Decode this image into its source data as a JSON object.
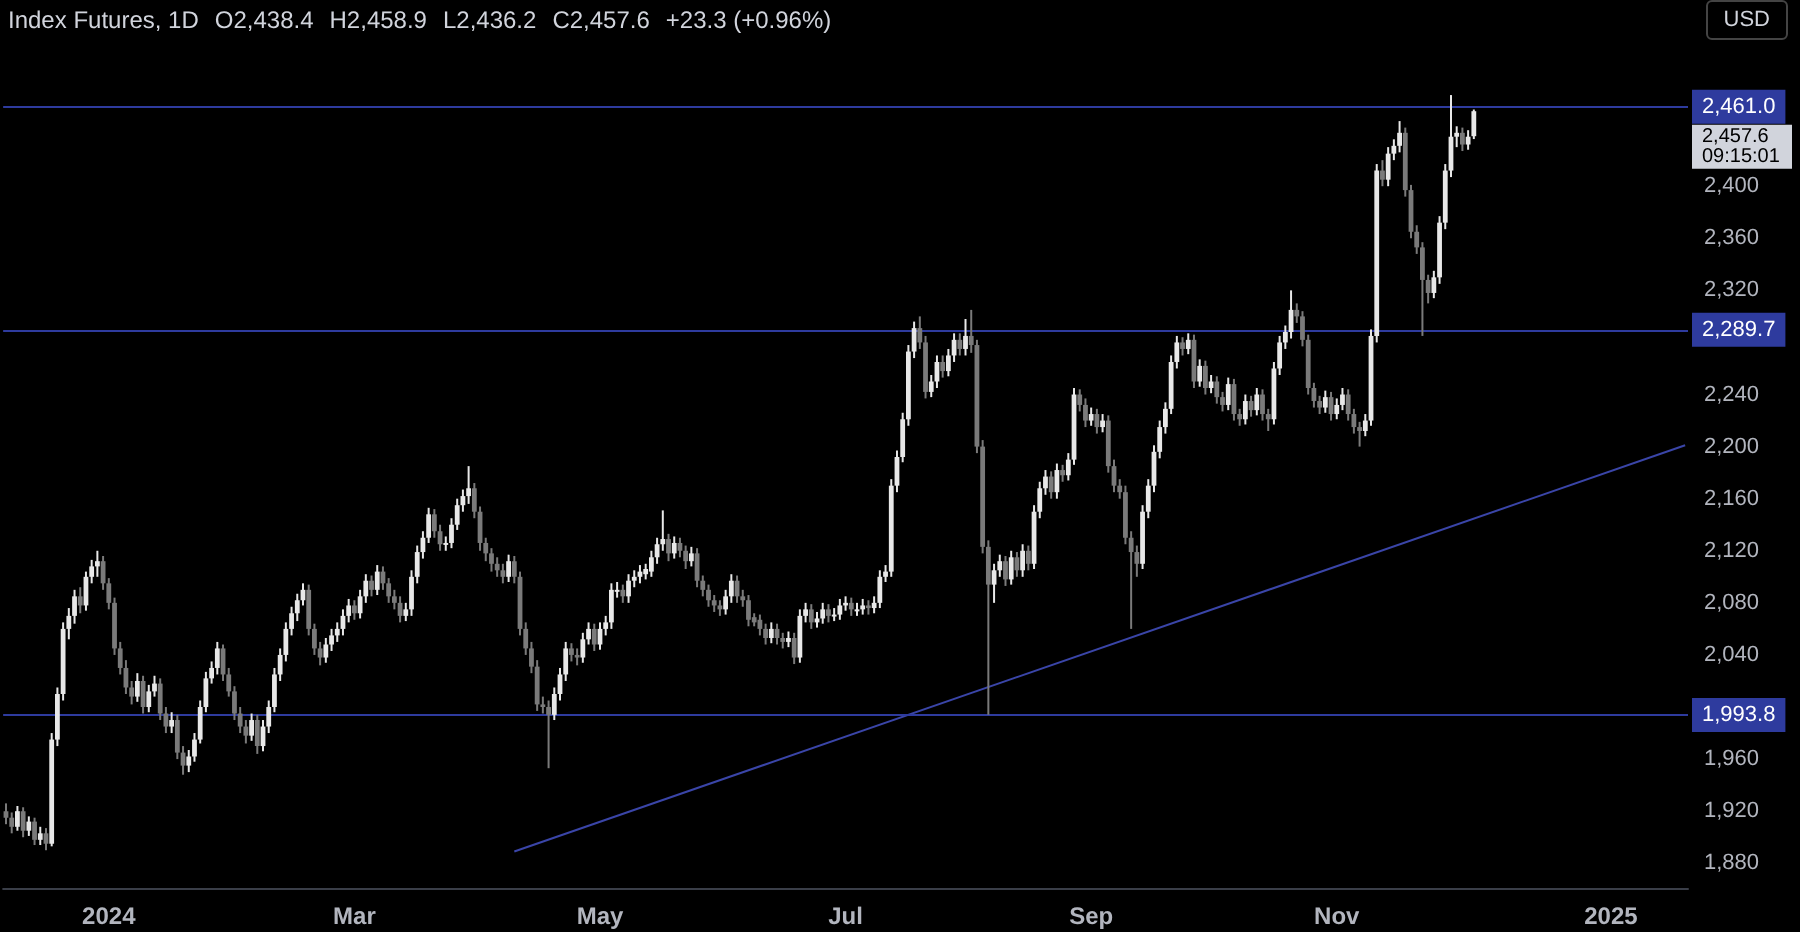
{
  "chart_data": {
    "type": "candlestick",
    "title": "Index Futures, 1D",
    "annotations": [
      "O2,438.4",
      "H2,458.9",
      "L2,436.2",
      "C2,457.6",
      "+23.3 (+0.96%)",
      "USD",
      "2,457.6",
      "09:15:01"
    ],
    "categories": [
      null,
      null,
      null,
      null,
      null,
      null,
      null,
      null,
      null,
      null,
      null,
      null,
      null,
      null,
      null,
      null,
      null,
      null,
      "2024",
      null,
      null,
      null,
      null,
      null,
      null,
      null,
      null,
      null,
      null,
      null,
      null,
      null,
      null,
      null,
      null,
      null,
      null,
      null,
      null,
      null,
      null,
      null,
      null,
      null,
      null,
      null,
      null,
      null,
      null,
      null,
      null,
      null,
      null,
      null,
      null,
      null,
      null,
      null,
      null,
      null,
      null,
      "Mar",
      null,
      null,
      null,
      null,
      null,
      null,
      null,
      null,
      null,
      null,
      null,
      null,
      null,
      null,
      null,
      null,
      null,
      null,
      null,
      null,
      null,
      null,
      null,
      null,
      null,
      null,
      null,
      null,
      null,
      null,
      null,
      null,
      null,
      null,
      null,
      null,
      null,
      null,
      null,
      null,
      null,
      null,
      "May",
      null,
      null,
      null,
      null,
      null,
      null,
      null,
      null,
      null,
      null,
      null,
      null,
      null,
      null,
      null,
      null,
      null,
      null,
      null,
      null,
      null,
      null,
      null,
      null,
      null,
      null,
      null,
      null,
      null,
      null,
      null,
      null,
      null,
      null,
      null,
      null,
      null,
      null,
      null,
      null,
      null,
      null,
      "Jul",
      null,
      null,
      null,
      null,
      null,
      null,
      null,
      null,
      null,
      null,
      null,
      null,
      null,
      null,
      null,
      null,
      null,
      null,
      null,
      null,
      null,
      null,
      null,
      null,
      null,
      null,
      null,
      null,
      null,
      null,
      null,
      null,
      null,
      null,
      null,
      null,
      null,
      null,
      null,
      null,
      null,
      null,
      "Sep",
      null,
      null,
      null,
      null,
      null,
      null,
      null,
      null,
      null,
      null,
      null,
      null,
      null,
      null,
      null,
      null,
      null,
      null,
      null,
      null,
      null,
      null,
      null,
      null,
      null,
      null,
      null,
      null,
      null,
      null,
      null,
      null,
      null,
      null,
      null,
      null,
      null,
      null,
      null,
      null,
      null,
      null,
      "Nov",
      null,
      null,
      null,
      null,
      null,
      null,
      null,
      null,
      null,
      null,
      null,
      null,
      null,
      null,
      null,
      null,
      null,
      null,
      null,
      null,
      null,
      null,
      null,
      null,
      null,
      null,
      null,
      null,
      null,
      null,
      null,
      null,
      null,
      null,
      null,
      null,
      null,
      null,
      null,
      null,
      null,
      null,
      null,
      null,
      null,
      null,
      null,
      "2025",
      null,
      null,
      null,
      null,
      null,
      null,
      null,
      null,
      null,
      null,
      null,
      null,
      null
    ],
    "ohlc": [
      [
        1920,
        1926,
        1910,
        1915
      ],
      [
        1915,
        1919,
        1903,
        1908
      ],
      [
        1908,
        1924,
        1905,
        1920
      ],
      [
        1920,
        1923,
        1900,
        1905
      ],
      [
        1905,
        1916,
        1901,
        1912
      ],
      [
        1912,
        1915,
        1894,
        1898
      ],
      [
        1898,
        1908,
        1894,
        1903
      ],
      [
        1903,
        1907,
        1890,
        1895
      ],
      [
        1895,
        1980,
        1893,
        1975
      ],
      [
        1975,
        2015,
        1970,
        2010
      ],
      [
        2010,
        2065,
        2005,
        2060
      ],
      [
        2060,
        2076,
        2052,
        2070
      ],
      [
        2070,
        2090,
        2064,
        2085
      ],
      [
        2085,
        2092,
        2072,
        2078
      ],
      [
        2078,
        2104,
        2074,
        2100
      ],
      [
        2100,
        2113,
        2095,
        2108
      ],
      [
        2108,
        2120,
        2100,
        2112
      ],
      [
        2112,
        2116,
        2090,
        2095
      ],
      [
        2095,
        2099,
        2075,
        2080
      ],
      [
        2080,
        2084,
        2040,
        2045
      ],
      [
        2045,
        2050,
        2025,
        2030
      ],
      [
        2030,
        2036,
        2010,
        2015
      ],
      [
        2015,
        2020,
        2002,
        2008
      ],
      [
        2008,
        2026,
        2004,
        2020
      ],
      [
        2020,
        2024,
        1995,
        2000
      ],
      [
        2000,
        2017,
        1996,
        2012
      ],
      [
        2012,
        2024,
        2008,
        2018
      ],
      [
        2018,
        2022,
        1990,
        1995
      ],
      [
        1995,
        2000,
        1980,
        1985
      ],
      [
        1985,
        1996,
        1980,
        1990
      ],
      [
        1990,
        1994,
        1960,
        1965
      ],
      [
        1965,
        1970,
        1948,
        1955
      ],
      [
        1955,
        1967,
        1950,
        1962
      ],
      [
        1962,
        1980,
        1958,
        1975
      ],
      [
        1975,
        2005,
        1972,
        2000
      ],
      [
        2000,
        2027,
        1996,
        2022
      ],
      [
        2022,
        2035,
        2018,
        2030
      ],
      [
        2030,
        2050,
        2025,
        2045
      ],
      [
        2045,
        2048,
        2020,
        2025
      ],
      [
        2025,
        2030,
        2008,
        2012
      ],
      [
        2012,
        2016,
        1990,
        1995
      ],
      [
        1995,
        2000,
        1980,
        1985
      ],
      [
        1985,
        1990,
        1972,
        1978
      ],
      [
        1978,
        1995,
        1974,
        1990
      ],
      [
        1990,
        1994,
        1964,
        1970
      ],
      [
        1970,
        1990,
        1966,
        1985
      ],
      [
        1985,
        2005,
        1980,
        2000
      ],
      [
        2000,
        2030,
        1996,
        2025
      ],
      [
        2025,
        2045,
        2020,
        2040
      ],
      [
        2040,
        2065,
        2035,
        2060
      ],
      [
        2060,
        2077,
        2055,
        2072
      ],
      [
        2072,
        2087,
        2066,
        2082
      ],
      [
        2082,
        2095,
        2078,
        2090
      ],
      [
        2090,
        2094,
        2055,
        2060
      ],
      [
        2060,
        2064,
        2040,
        2045
      ],
      [
        2045,
        2050,
        2032,
        2038
      ],
      [
        2038,
        2053,
        2034,
        2048
      ],
      [
        2048,
        2060,
        2043,
        2055
      ],
      [
        2055,
        2065,
        2050,
        2060
      ],
      [
        2060,
        2075,
        2055,
        2070
      ],
      [
        2070,
        2083,
        2065,
        2078
      ],
      [
        2078,
        2082,
        2067,
        2072
      ],
      [
        2072,
        2090,
        2068,
        2085
      ],
      [
        2085,
        2102,
        2080,
        2097
      ],
      [
        2097,
        2101,
        2085,
        2090
      ],
      [
        2090,
        2109,
        2086,
        2104
      ],
      [
        2104,
        2108,
        2090,
        2095
      ],
      [
        2095,
        2099,
        2080,
        2085
      ],
      [
        2085,
        2090,
        2075,
        2080
      ],
      [
        2080,
        2085,
        2065,
        2070
      ],
      [
        2070,
        2080,
        2066,
        2075
      ],
      [
        2075,
        2105,
        2070,
        2100
      ],
      [
        2100,
        2124,
        2095,
        2119
      ],
      [
        2119,
        2135,
        2114,
        2130
      ],
      [
        2130,
        2153,
        2126,
        2148
      ],
      [
        2148,
        2152,
        2130,
        2135
      ],
      [
        2135,
        2140,
        2120,
        2125
      ],
      [
        2125,
        2131,
        2120,
        2126
      ],
      [
        2126,
        2145,
        2122,
        2140
      ],
      [
        2140,
        2160,
        2136,
        2155
      ],
      [
        2155,
        2167,
        2150,
        2162
      ],
      [
        2162,
        2185,
        2156,
        2168
      ],
      [
        2168,
        2172,
        2145,
        2150
      ],
      [
        2150,
        2154,
        2120,
        2126
      ],
      [
        2126,
        2130,
        2112,
        2118
      ],
      [
        2118,
        2122,
        2104,
        2110
      ],
      [
        2110,
        2115,
        2100,
        2105
      ],
      [
        2105,
        2110,
        2095,
        2100
      ],
      [
        2100,
        2117,
        2096,
        2112
      ],
      [
        2112,
        2116,
        2095,
        2100
      ],
      [
        2100,
        2104,
        2055,
        2060
      ],
      [
        2060,
        2065,
        2040,
        2045
      ],
      [
        2045,
        2050,
        2026,
        2031
      ],
      [
        2031,
        2036,
        1997,
        2002
      ],
      [
        2002,
        2008,
        1995,
        2000
      ],
      [
        2000,
        2005,
        1953,
        1994
      ],
      [
        1994,
        2015,
        1990,
        2010
      ],
      [
        2010,
        2030,
        2005,
        2025
      ],
      [
        2025,
        2050,
        2020,
        2045
      ],
      [
        2045,
        2049,
        2035,
        2040
      ],
      [
        2040,
        2045,
        2032,
        2038
      ],
      [
        2038,
        2057,
        2034,
        2052
      ],
      [
        2052,
        2065,
        2048,
        2060
      ],
      [
        2060,
        2064,
        2043,
        2048
      ],
      [
        2048,
        2065,
        2044,
        2060
      ],
      [
        2060,
        2070,
        2055,
        2065
      ],
      [
        2065,
        2095,
        2060,
        2090
      ],
      [
        2090,
        2096,
        2084,
        2090
      ],
      [
        2090,
        2094,
        2080,
        2085
      ],
      [
        2085,
        2102,
        2080,
        2097
      ],
      [
        2097,
        2105,
        2092,
        2100
      ],
      [
        2100,
        2109,
        2095,
        2104
      ],
      [
        2102,
        2110,
        2098,
        2106
      ],
      [
        2104,
        2120,
        2100,
        2115
      ],
      [
        2115,
        2130,
        2110,
        2125
      ],
      [
        2125,
        2151,
        2120,
        2129
      ],
      [
        2129,
        2133,
        2112,
        2118
      ],
      [
        2118,
        2131,
        2114,
        2126
      ],
      [
        2126,
        2130,
        2115,
        2120
      ],
      [
        2120,
        2124,
        2106,
        2112
      ],
      [
        2112,
        2123,
        2108,
        2118
      ],
      [
        2118,
        2122,
        2092,
        2097
      ],
      [
        2097,
        2101,
        2085,
        2090
      ],
      [
        2090,
        2094,
        2077,
        2082
      ],
      [
        2082,
        2086,
        2073,
        2078
      ],
      [
        2078,
        2082,
        2070,
        2075
      ],
      [
        2075,
        2090,
        2071,
        2085
      ],
      [
        2085,
        2102,
        2080,
        2097
      ],
      [
        2097,
        2101,
        2080,
        2085
      ],
      [
        2085,
        2090,
        2077,
        2082
      ],
      [
        2082,
        2086,
        2062,
        2067
      ],
      [
        2069,
        2072,
        2062,
        2065
      ],
      [
        2067,
        2071,
        2055,
        2060
      ],
      [
        2060,
        2064,
        2048,
        2053
      ],
      [
        2053,
        2065,
        2049,
        2060
      ],
      [
        2060,
        2064,
        2048,
        2053
      ],
      [
        2053,
        2057,
        2045,
        2050
      ],
      [
        2050,
        2058,
        2046,
        2053
      ],
      [
        2053,
        2057,
        2033,
        2038
      ],
      [
        2038,
        2075,
        2034,
        2070
      ],
      [
        2070,
        2080,
        2065,
        2075
      ],
      [
        2075,
        2079,
        2060,
        2065
      ],
      [
        2065,
        2073,
        2061,
        2068
      ],
      [
        2068,
        2080,
        2064,
        2075
      ],
      [
        2075,
        2079,
        2065,
        2070
      ],
      [
        2070,
        2076,
        2066,
        2071
      ],
      [
        2071,
        2083,
        2067,
        2078
      ],
      [
        2078,
        2085,
        2074,
        2080
      ],
      [
        2080,
        2084,
        2070,
        2075
      ],
      [
        2075,
        2080,
        2070,
        2075
      ],
      [
        2075,
        2083,
        2071,
        2078
      ],
      [
        2078,
        2082,
        2071,
        2076
      ],
      [
        2076,
        2085,
        2072,
        2080
      ],
      [
        2080,
        2105,
        2076,
        2100
      ],
      [
        2100,
        2109,
        2096,
        2104
      ],
      [
        2104,
        2175,
        2100,
        2170
      ],
      [
        2170,
        2197,
        2165,
        2192
      ],
      [
        2192,
        2226,
        2188,
        2221
      ],
      [
        2221,
        2278,
        2216,
        2273
      ],
      [
        2273,
        2296,
        2268,
        2291
      ],
      [
        2291,
        2300,
        2275,
        2280
      ],
      [
        2280,
        2285,
        2237,
        2242
      ],
      [
        2242,
        2255,
        2238,
        2250
      ],
      [
        2250,
        2270,
        2245,
        2265
      ],
      [
        2265,
        2270,
        2253,
        2258
      ],
      [
        2258,
        2275,
        2254,
        2270
      ],
      [
        2270,
        2287,
        2265,
        2282
      ],
      [
        2282,
        2287,
        2270,
        2275
      ],
      [
        2275,
        2298,
        2270,
        2285
      ],
      [
        2285,
        2305,
        2272,
        2278
      ],
      [
        2278,
        2282,
        2195,
        2200
      ],
      [
        2200,
        2205,
        2118,
        2123
      ],
      [
        2123,
        2128,
        1994,
        2094
      ],
      [
        2094,
        2110,
        2080,
        2105
      ],
      [
        2105,
        2117,
        2100,
        2112
      ],
      [
        2112,
        2116,
        2093,
        2098
      ],
      [
        2098,
        2120,
        2094,
        2115
      ],
      [
        2115,
        2119,
        2100,
        2105
      ],
      [
        2105,
        2125,
        2100,
        2120
      ],
      [
        2120,
        2124,
        2105,
        2110
      ],
      [
        2110,
        2155,
        2106,
        2150
      ],
      [
        2150,
        2173,
        2145,
        2168
      ],
      [
        2168,
        2182,
        2163,
        2177
      ],
      [
        2177,
        2181,
        2160,
        2165
      ],
      [
        2165,
        2187,
        2160,
        2182
      ],
      [
        2182,
        2186,
        2173,
        2178
      ],
      [
        2178,
        2195,
        2174,
        2190
      ],
      [
        2190,
        2245,
        2186,
        2240
      ],
      [
        2240,
        2244,
        2227,
        2232
      ],
      [
        2232,
        2237,
        2215,
        2220
      ],
      [
        2220,
        2230,
        2216,
        2225
      ],
      [
        2225,
        2229,
        2210,
        2215
      ],
      [
        2215,
        2225,
        2211,
        2220
      ],
      [
        2220,
        2224,
        2180,
        2185
      ],
      [
        2185,
        2190,
        2165,
        2170
      ],
      [
        2170,
        2175,
        2160,
        2165
      ],
      [
        2165,
        2170,
        2125,
        2130
      ],
      [
        2130,
        2135,
        2060,
        2119
      ],
      [
        2119,
        2124,
        2100,
        2110
      ],
      [
        2110,
        2155,
        2106,
        2150
      ],
      [
        2150,
        2175,
        2145,
        2170
      ],
      [
        2170,
        2201,
        2165,
        2196
      ],
      [
        2196,
        2220,
        2191,
        2215
      ],
      [
        2215,
        2234,
        2210,
        2229
      ],
      [
        2229,
        2270,
        2225,
        2265
      ],
      [
        2265,
        2285,
        2260,
        2280
      ],
      [
        2280,
        2284,
        2270,
        2275
      ],
      [
        2275,
        2287,
        2271,
        2282
      ],
      [
        2282,
        2286,
        2245,
        2250
      ],
      [
        2250,
        2267,
        2246,
        2262
      ],
      [
        2262,
        2266,
        2240,
        2245
      ],
      [
        2245,
        2255,
        2241,
        2250
      ],
      [
        2250,
        2254,
        2233,
        2238
      ],
      [
        2238,
        2242,
        2227,
        2232
      ],
      [
        2232,
        2253,
        2228,
        2248
      ],
      [
        2248,
        2252,
        2220,
        2225
      ],
      [
        2225,
        2229,
        2216,
        2221
      ],
      [
        2221,
        2240,
        2217,
        2235
      ],
      [
        2235,
        2239,
        2223,
        2228
      ],
      [
        2228,
        2245,
        2224,
        2240
      ],
      [
        2240,
        2244,
        2220,
        2225
      ],
      [
        2225,
        2229,
        2212,
        2221
      ],
      [
        2221,
        2265,
        2217,
        2260
      ],
      [
        2260,
        2285,
        2255,
        2280
      ],
      [
        2280,
        2293,
        2275,
        2288
      ],
      [
        2288,
        2320,
        2283,
        2305
      ],
      [
        2305,
        2310,
        2295,
        2300
      ],
      [
        2300,
        2304,
        2277,
        2282
      ],
      [
        2282,
        2286,
        2240,
        2245
      ],
      [
        2245,
        2249,
        2230,
        2235
      ],
      [
        2235,
        2239,
        2225,
        2230
      ],
      [
        2230,
        2243,
        2226,
        2238
      ],
      [
        2238,
        2242,
        2220,
        2225
      ],
      [
        2225,
        2237,
        2221,
        2232
      ],
      [
        2232,
        2245,
        2228,
        2240
      ],
      [
        2240,
        2244,
        2220,
        2225
      ],
      [
        2225,
        2229,
        2210,
        2215
      ],
      [
        2215,
        2219,
        2200,
        2212
      ],
      [
        2212,
        2225,
        2208,
        2220
      ],
      [
        2220,
        2290,
        2216,
        2285
      ],
      [
        2285,
        2417,
        2280,
        2412
      ],
      [
        2412,
        2420,
        2400,
        2405
      ],
      [
        2405,
        2430,
        2400,
        2425
      ],
      [
        2425,
        2436,
        2420,
        2431
      ],
      [
        2431,
        2450,
        2426,
        2441
      ],
      [
        2441,
        2445,
        2392,
        2397
      ],
      [
        2397,
        2401,
        2360,
        2365
      ],
      [
        2365,
        2370,
        2348,
        2353
      ],
      [
        2353,
        2357,
        2285,
        2328
      ],
      [
        2328,
        2332,
        2310,
        2318
      ],
      [
        2318,
        2335,
        2314,
        2330
      ],
      [
        2330,
        2377,
        2325,
        2372
      ],
      [
        2372,
        2417,
        2367,
        2412
      ],
      [
        2412,
        2470,
        2407,
        2438
      ],
      [
        2438,
        2446,
        2430,
        2441
      ],
      [
        2441,
        2445,
        2427,
        2432
      ],
      [
        2432,
        2443,
        2428,
        2438
      ],
      [
        2438.4,
        2458.9,
        2436.2,
        2457.6
      ],
      null,
      null,
      null,
      null,
      null,
      null,
      null,
      null,
      null,
      null,
      null,
      null,
      null,
      null,
      null,
      null,
      null,
      null,
      null,
      null,
      null,
      null,
      null,
      null,
      null,
      null,
      null,
      null,
      null,
      null,
      null,
      null,
      null,
      null,
      null,
      null,
      null
    ],
    "series": [
      {
        "type": "line",
        "color": "#3a45a8",
        "values": [
          null,
          null,
          null,
          null,
          null,
          null,
          null,
          null,
          null,
          null,
          null,
          null,
          null,
          null,
          null,
          null,
          null,
          null,
          null,
          null,
          null,
          null,
          null,
          null,
          null,
          null,
          null,
          null,
          null,
          null,
          null,
          null,
          null,
          null,
          null,
          null,
          null,
          null,
          null,
          null,
          null,
          null,
          null,
          null,
          null,
          null,
          null,
          null,
          null,
          null,
          null,
          null,
          null,
          null,
          null,
          null,
          null,
          null,
          null,
          null,
          null,
          null,
          null,
          null,
          null,
          null,
          null,
          null,
          null,
          null,
          null,
          null,
          null,
          null,
          null,
          null,
          null,
          null,
          null,
          null,
          null,
          null,
          null,
          null,
          null,
          null,
          null,
          null,
          null,
          1889,
          null,
          null,
          null,
          null,
          null,
          null,
          null,
          null,
          null,
          null,
          null,
          null,
          null,
          null,
          null,
          null,
          null,
          null,
          null,
          null,
          null,
          null,
          null,
          null,
          null,
          null,
          null,
          null,
          null,
          null,
          null,
          null,
          null,
          null,
          null,
          null,
          null,
          null,
          null,
          null,
          null,
          null,
          null,
          null,
          null,
          null,
          null,
          null,
          null,
          null,
          null,
          null,
          null,
          null,
          null,
          null,
          null,
          null,
          null,
          null,
          null,
          null,
          null,
          null,
          null,
          null,
          null,
          null,
          null,
          null,
          null,
          null,
          null,
          null,
          null,
          null,
          null,
          null,
          null,
          null,
          null,
          null,
          null,
          null,
          null,
          null,
          null,
          null,
          null,
          null,
          null,
          null,
          null,
          null,
          null,
          null,
          null,
          null,
          null,
          null,
          null,
          null,
          null,
          null,
          null,
          null,
          null,
          null,
          null,
          null,
          null,
          null,
          null,
          null,
          null,
          null,
          null,
          null,
          null,
          null,
          null,
          null,
          null,
          null,
          null,
          null,
          null,
          null,
          null,
          null,
          null,
          null,
          null,
          null,
          null,
          null,
          null,
          null,
          null,
          null,
          null,
          null,
          null,
          null,
          null,
          null,
          null,
          null,
          null,
          null,
          null,
          null,
          null,
          null,
          null,
          null,
          null,
          null,
          null,
          null,
          null,
          null,
          null,
          null,
          null,
          null,
          null,
          null,
          null,
          null,
          null,
          null,
          null,
          null,
          null,
          null,
          null,
          null,
          null,
          null,
          null,
          null,
          null,
          null,
          null,
          null,
          null,
          null,
          null,
          null,
          null,
          null,
          null,
          null,
          null,
          null,
          null,
          null,
          null,
          null,
          null,
          null,
          null,
          null,
          2201
        ]
      }
    ],
    "ylim": [
      1861,
      2543
    ],
    "yticks": [
      {
        "value": 1880,
        "label": "1,880"
      },
      {
        "value": 1920,
        "label": "1,920"
      },
      {
        "value": 1960,
        "label": "1,960"
      },
      {
        "value": 2040,
        "label": "2,040"
      },
      {
        "value": 2080,
        "label": "2,080"
      },
      {
        "value": 2120,
        "label": "2,120"
      },
      {
        "value": 2160,
        "label": "2,160"
      },
      {
        "value": 2200,
        "label": "2,200"
      },
      {
        "value": 2240,
        "label": "2,240"
      },
      {
        "value": 2320,
        "label": "2,320"
      },
      {
        "value": 2360,
        "label": "2,360"
      },
      {
        "value": 2400,
        "label": "2,400"
      }
    ],
    "ref_lines": [
      {
        "axis": "y",
        "value": 2461.0,
        "label": "2,461.0",
        "color": "#2e3b9e"
      },
      {
        "axis": "y",
        "value": 2289.7,
        "label": "2,289.7",
        "color": "#2e3b9e"
      },
      {
        "axis": "y",
        "value": 1993.8,
        "label": "1,993.8",
        "color": "#2e3b9e"
      }
    ]
  }
}
